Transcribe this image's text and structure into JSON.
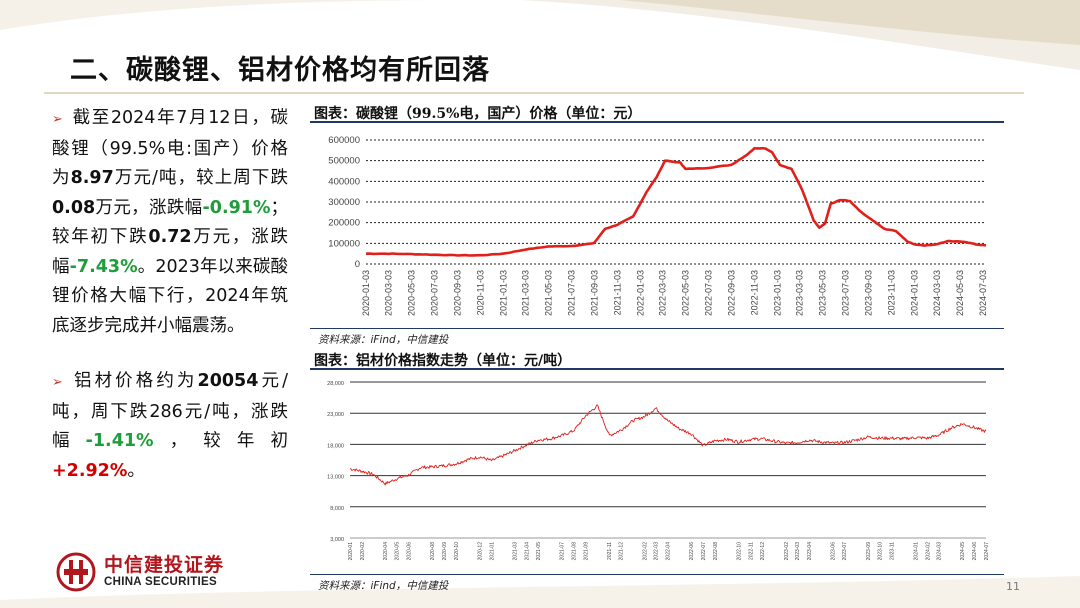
{
  "page": {
    "title": "二、碳酸锂、铝材价格均有所回落",
    "page_number": "11"
  },
  "bullets": [
    {
      "runs": [
        {
          "t": "截至2024年7月12日，碳酸锂（99.5%电:国产）价格为",
          "s": "n"
        },
        {
          "t": "8.97",
          "s": "b"
        },
        {
          "t": "万元/吨，较上周下跌",
          "s": "n"
        },
        {
          "t": "0.08",
          "s": "b"
        },
        {
          "t": "万元，涨跌幅",
          "s": "n"
        },
        {
          "t": "-0.91%",
          "s": "g"
        },
        {
          "t": "；较年初下跌",
          "s": "n"
        },
        {
          "t": "0.72",
          "s": "b"
        },
        {
          "t": "万元，涨跌幅",
          "s": "n"
        },
        {
          "t": "-7.43%",
          "s": "g"
        },
        {
          "t": "。2023年以来碳酸锂价格大幅下行，2024年筑底逐步完成并小幅震荡。",
          "s": "n"
        }
      ]
    },
    {
      "runs": [
        {
          "t": "铝材价格约为",
          "s": "n"
        },
        {
          "t": "20054",
          "s": "b"
        },
        {
          "t": "元/吨，周下跌286元/吨，涨跌幅",
          "s": "n"
        },
        {
          "t": "-1.41%",
          "s": "g"
        },
        {
          "t": "，较年初",
          "s": "n"
        },
        {
          "t": "+2.92%",
          "s": "r"
        },
        {
          "t": "。",
          "s": "n"
        }
      ]
    }
  ],
  "colors": {
    "line": "#e0201b",
    "title_rule": "#1f3864",
    "green": "#1f9d3a",
    "red": "#d40000",
    "brand": "#b0161c"
  },
  "logo": {
    "name_cn": "中信建投证券",
    "name_en": "CHINA SECURITIES"
  },
  "chart_data": [
    {
      "type": "line",
      "title": "图表：碳酸锂（99.5%电，国产）价格（单位：元）",
      "source": "资料来源：iFind，中信建投",
      "ylim": [
        0,
        600000
      ],
      "yticks": [
        "0",
        "100000",
        "200000",
        "300000",
        "400000",
        "500000",
        "600000"
      ],
      "grid": true,
      "xticks": [
        "2020-01-03",
        "2020-03-03",
        "2020-05-03",
        "2020-07-03",
        "2020-09-03",
        "2020-11-03",
        "2021-01-03",
        "2021-03-03",
        "2021-05-03",
        "2021-07-03",
        "2021-09-03",
        "2021-11-03",
        "2022-01-03",
        "2022-03-03",
        "2022-05-03",
        "2022-07-03",
        "2022-09-03",
        "2022-11-03",
        "2023-01-03",
        "2023-03-03",
        "2023-05-03",
        "2023-07-03",
        "2023-09-03",
        "2023-11-03",
        "2024-01-03",
        "2024-03-03",
        "2024-05-03",
        "2024-07-03"
      ],
      "series": [
        {
          "values": [
            [
              "2020-01-03",
              50000
            ],
            [
              "2020-03-03",
              50000
            ],
            [
              "2020-05-03",
              48000
            ],
            [
              "2020-07-03",
              45000
            ],
            [
              "2020-09-03",
              42000
            ],
            [
              "2020-11-03",
              42000
            ],
            [
              "2021-01-03",
              50000
            ],
            [
              "2021-03-03",
              70000
            ],
            [
              "2021-05-03",
              85000
            ],
            [
              "2021-07-03",
              87000
            ],
            [
              "2021-09-01",
              100000
            ],
            [
              "2021-10-01",
              170000
            ],
            [
              "2021-11-03",
              190000
            ],
            [
              "2021-12-15",
              230000
            ],
            [
              "2022-01-20",
              350000
            ],
            [
              "2022-02-15",
              420000
            ],
            [
              "2022-03-10",
              500000
            ],
            [
              "2022-04-20",
              490000
            ],
            [
              "2022-05-03",
              460000
            ],
            [
              "2022-07-03",
              465000
            ],
            [
              "2022-09-03",
              480000
            ],
            [
              "2022-10-15",
              530000
            ],
            [
              "2022-11-03",
              560000
            ],
            [
              "2022-12-01",
              560000
            ],
            [
              "2022-12-20",
              540000
            ],
            [
              "2023-01-10",
              480000
            ],
            [
              "2023-02-10",
              460000
            ],
            [
              "2023-03-10",
              360000
            ],
            [
              "2023-04-10",
              210000
            ],
            [
              "2023-04-25",
              175000
            ],
            [
              "2023-05-10",
              195000
            ],
            [
              "2023-05-25",
              290000
            ],
            [
              "2023-06-20",
              310000
            ],
            [
              "2023-07-15",
              305000
            ],
            [
              "2023-08-15",
              250000
            ],
            [
              "2023-09-15",
              210000
            ],
            [
              "2023-10-15",
              170000
            ],
            [
              "2023-11-15",
              160000
            ],
            [
              "2023-12-15",
              110000
            ],
            [
              "2024-01-03",
              95000
            ],
            [
              "2024-02-01",
              90000
            ],
            [
              "2024-03-01",
              95000
            ],
            [
              "2024-04-01",
              110000
            ],
            [
              "2024-05-15",
              108000
            ],
            [
              "2024-06-15",
              95000
            ],
            [
              "2024-07-12",
              89700
            ]
          ]
        }
      ]
    },
    {
      "type": "line",
      "title": "图表：铝材价格指数走势（单位：元/吨）",
      "source": "资料来源：iFind，中信建投",
      "ylim": [
        3000,
        28000
      ],
      "yticks": [
        "3,000",
        "8,000",
        "13,000",
        "18,000",
        "23,000",
        "28,000"
      ],
      "grid": true,
      "xticks": [
        "2020-01",
        "2020-02",
        "2020-04",
        "2020-05",
        "2020-06",
        "2020-08",
        "2020-09",
        "2020-10",
        "2020-12",
        "2021-01",
        "2021-03",
        "2021-04",
        "2021-05",
        "2021-07",
        "2021-08",
        "2021-09",
        "2021-11",
        "2021-12",
        "2022-02",
        "2022-03",
        "2022-04",
        "2022-06",
        "2022-07",
        "2022-08",
        "2022-10",
        "2022-11",
        "2022-12",
        "2023-02",
        "2023-03",
        "2023-04",
        "2023-06",
        "2023-07",
        "2023-09",
        "2023-10",
        "2023-11",
        "2024-01",
        "2024-02",
        "2024-03",
        "2024-05",
        "2024-06",
        "2024-07"
      ],
      "series": [
        {
          "values": [
            [
              "2020-01",
              14100
            ],
            [
              "2020-02",
              13700
            ],
            [
              "2020-03",
              13200
            ],
            [
              "2020-04",
              11700
            ],
            [
              "2020-05",
              12500
            ],
            [
              "2020-06",
              13100
            ],
            [
              "2020-07",
              14300
            ],
            [
              "2020-08",
              14400
            ],
            [
              "2020-09",
              14600
            ],
            [
              "2020-10",
              14900
            ],
            [
              "2020-11",
              15600
            ],
            [
              "2020-12",
              16000
            ],
            [
              "2021-01",
              15400
            ],
            [
              "2021-02",
              16200
            ],
            [
              "2021-03",
              17000
            ],
            [
              "2021-04",
              17900
            ],
            [
              "2021-05",
              18700
            ],
            [
              "2021-06",
              18900
            ],
            [
              "2021-07",
              19400
            ],
            [
              "2021-08",
              20200
            ],
            [
              "2021-09",
              22600
            ],
            [
              "2021-10",
              24200
            ],
            [
              "2021-11",
              19400
            ],
            [
              "2021-12",
              20300
            ],
            [
              "2022-01",
              21800
            ],
            [
              "2022-02",
              22500
            ],
            [
              "2022-03",
              23800
            ],
            [
              "2022-04",
              21800
            ],
            [
              "2022-05",
              20500
            ],
            [
              "2022-06",
              19700
            ],
            [
              "2022-07",
              17800
            ],
            [
              "2022-08",
              18600
            ],
            [
              "2022-09",
              18800
            ],
            [
              "2022-10",
              18400
            ],
            [
              "2022-11",
              18800
            ],
            [
              "2022-12",
              18900
            ],
            [
              "2023-01",
              18500
            ],
            [
              "2023-02",
              18200
            ],
            [
              "2023-03",
              18300
            ],
            [
              "2023-04",
              18700
            ],
            [
              "2023-05",
              18400
            ],
            [
              "2023-06",
              18200
            ],
            [
              "2023-07",
              18300
            ],
            [
              "2023-08",
              18700
            ],
            [
              "2023-09",
              19200
            ],
            [
              "2023-10",
              19000
            ],
            [
              "2023-11",
              19000
            ],
            [
              "2023-12",
              18900
            ],
            [
              "2024-01",
              19100
            ],
            [
              "2024-02",
              19000
            ],
            [
              "2024-03",
              19500
            ],
            [
              "2024-04",
              20600
            ],
            [
              "2024-05",
              21300
            ],
            [
              "2024-06",
              20700
            ],
            [
              "2024-07",
              20054
            ]
          ]
        }
      ]
    }
  ]
}
